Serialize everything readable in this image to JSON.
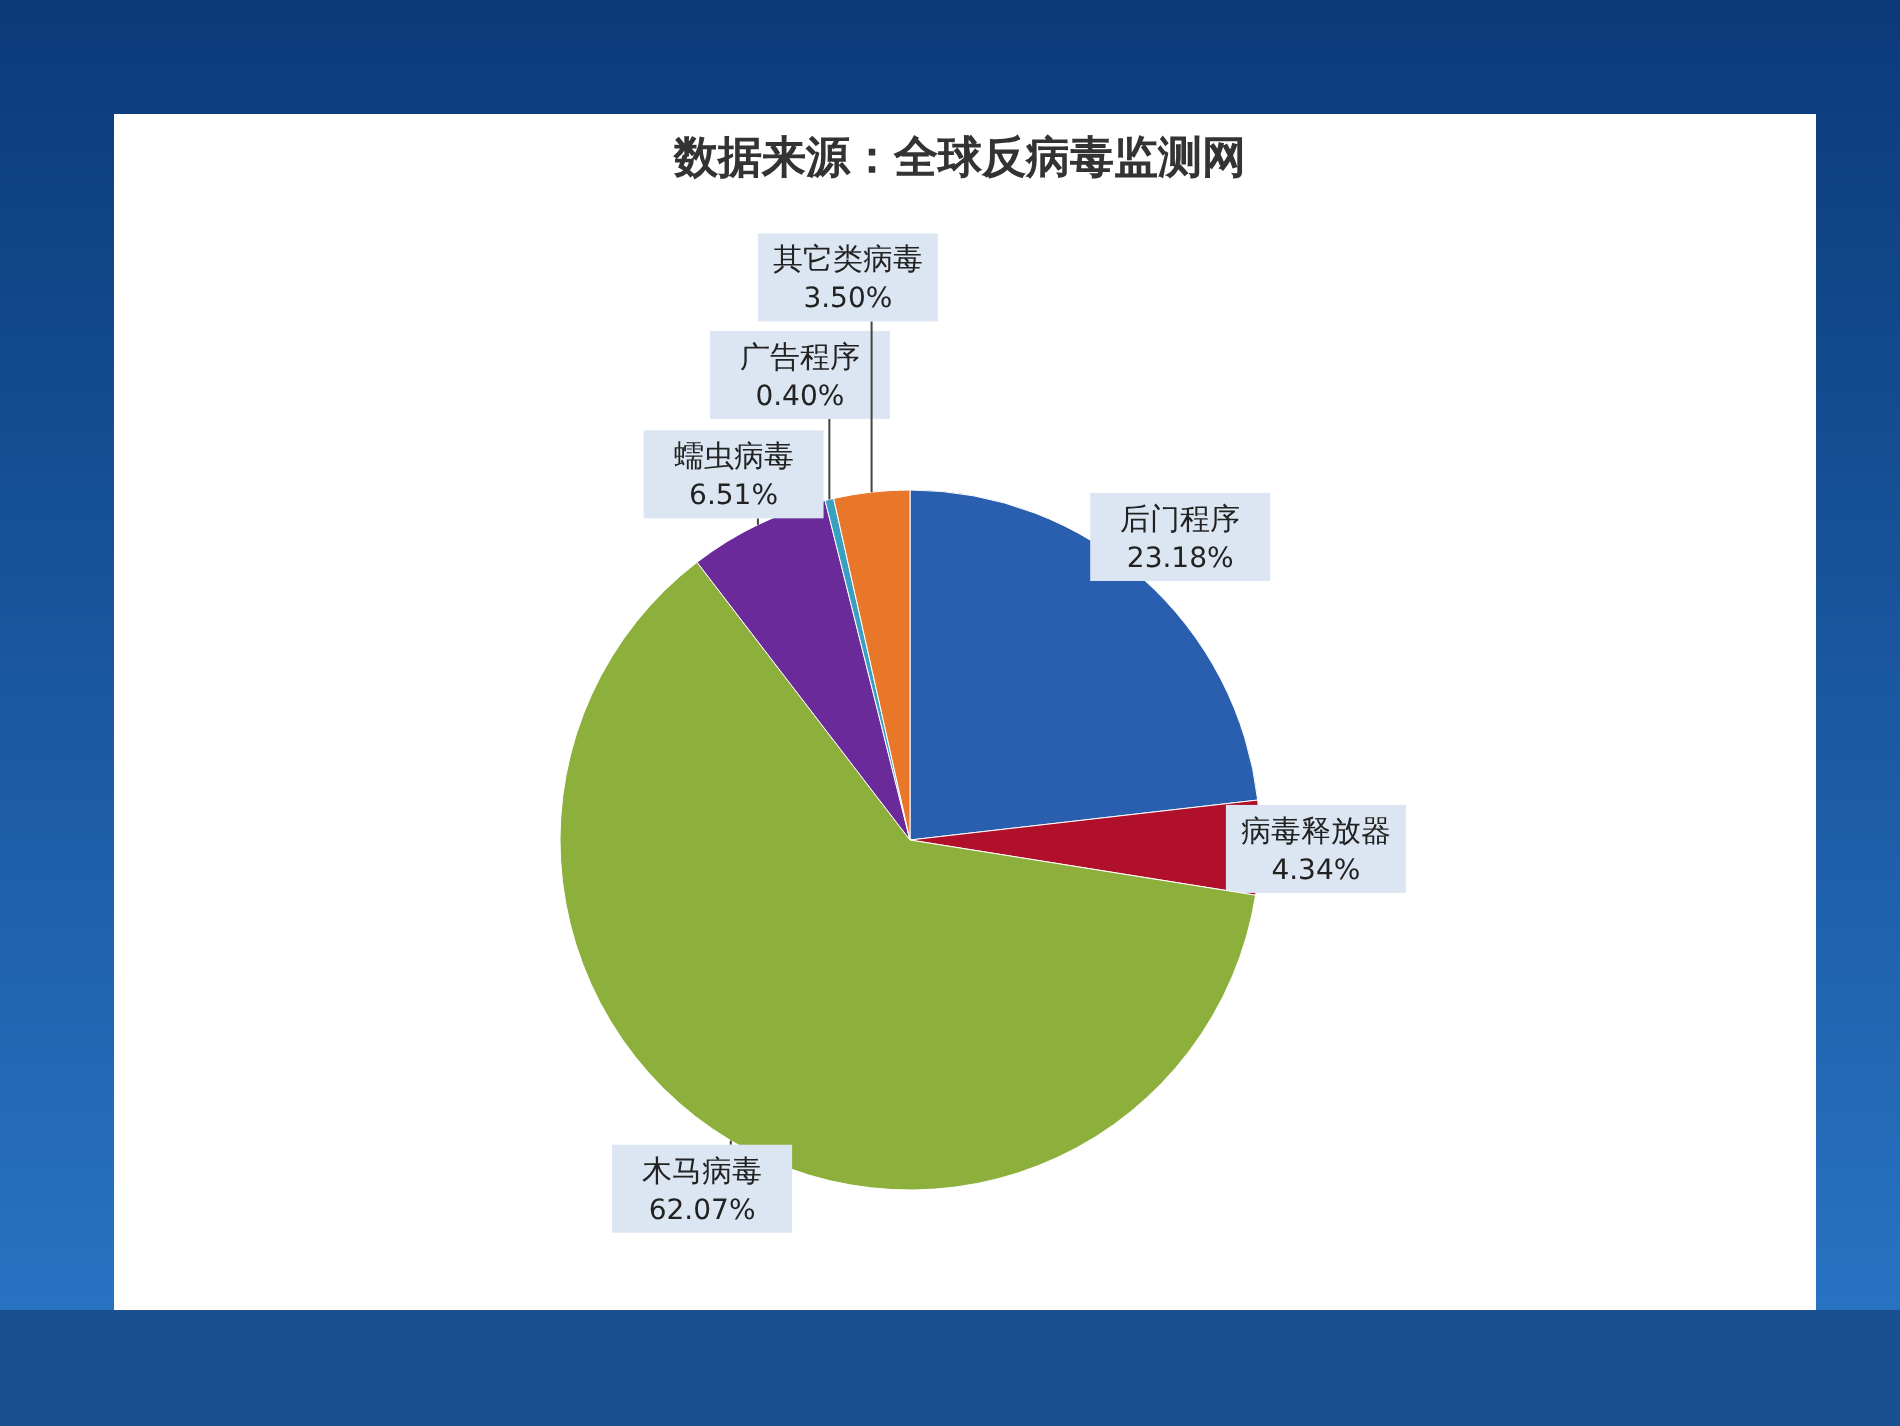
{
  "chart_data": {
    "type": "pie",
    "title": "数据来源：全球反病毒监测网",
    "categories": [
      "后门程序",
      "病毒释放器",
      "木马病毒",
      "蠕虫病毒",
      "广告程序",
      "其它类病毒"
    ],
    "values": [
      23.18,
      4.34,
      62.07,
      6.51,
      0.4,
      3.5
    ],
    "value_labels": [
      "23.18%",
      "4.34%",
      "62.07%",
      "6.51%",
      "0.40%",
      "3.50%"
    ],
    "colors": [
      "#2a5fb0",
      "#b0102a",
      "#8db03c",
      "#6a2a9a",
      "#3aa0c0",
      "#e8772a"
    ]
  }
}
